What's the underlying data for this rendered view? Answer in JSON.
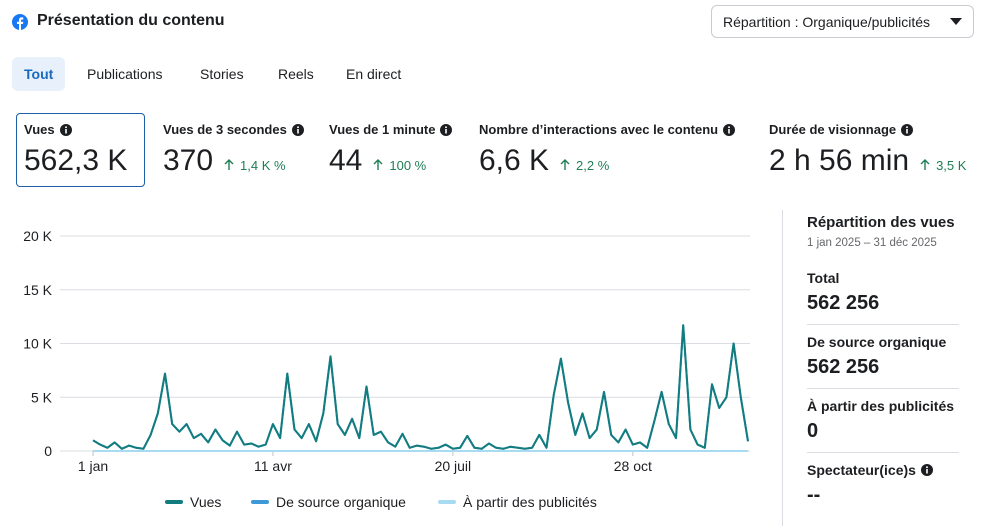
{
  "header": {
    "title": "Présentation du contenu",
    "dropdown": "Répartition : Organique/publicités"
  },
  "tabs": [
    "Tout",
    "Publications",
    "Stories",
    "Reels",
    "En direct"
  ],
  "metrics": [
    {
      "label": "Vues",
      "value": "562,3 K"
    },
    {
      "label": "Vues de 3 secondes",
      "value": "370",
      "change": "1,4 K %"
    },
    {
      "label": "Vues de 1 minute",
      "value": "44",
      "change": "100 %"
    },
    {
      "label": "Nombre d’interactions avec le contenu",
      "value": "6,6 K",
      "change": "2,2 %"
    },
    {
      "label": "Durée de visionnage",
      "value": "2 h 56 min",
      "change": "3,5 K"
    }
  ],
  "chart_data": {
    "type": "line",
    "x": [
      1,
      5,
      9,
      13,
      17,
      21,
      25,
      29,
      33,
      37,
      41,
      45,
      49,
      53,
      57,
      61,
      65,
      69,
      73,
      77,
      81,
      85,
      89,
      93,
      97,
      101,
      105,
      109,
      113,
      117,
      121,
      125,
      129,
      133,
      137,
      141,
      145,
      149,
      153,
      157,
      161,
      165,
      169,
      173,
      177,
      181,
      185,
      189,
      193,
      197,
      201,
      205,
      209,
      213,
      217,
      221,
      225,
      229,
      233,
      237,
      241,
      245,
      249,
      253,
      257,
      261,
      265,
      269,
      273,
      277,
      281,
      285,
      289,
      293,
      297,
      301,
      305,
      309,
      313,
      317,
      321,
      325,
      329,
      333,
      337,
      341,
      345,
      349,
      353,
      357,
      361,
      365
    ],
    "series": [
      {
        "name": "À partir des publicités",
        "color": "#a8daf2",
        "values": [
          0,
          0,
          0,
          0,
          0,
          0,
          0,
          0,
          0,
          0,
          0,
          0,
          0,
          0,
          0,
          0,
          0,
          0,
          0,
          0,
          0,
          0,
          0,
          0,
          0,
          0,
          0,
          0,
          0,
          0,
          0,
          0,
          0,
          0,
          0,
          0,
          0,
          0,
          0,
          0,
          0,
          0,
          0,
          0,
          0,
          0,
          0,
          0,
          0,
          0,
          0,
          0,
          0,
          0,
          0,
          0,
          0,
          0,
          0,
          0,
          0,
          0,
          0,
          0,
          0,
          0,
          0,
          0,
          0,
          0,
          0,
          0,
          0,
          0,
          0,
          0,
          0,
          0,
          0,
          0,
          0,
          0,
          0,
          0,
          0,
          0,
          0,
          0,
          0,
          0,
          0,
          0
        ]
      },
      {
        "name": "De source organique",
        "color": "#3d9ad6",
        "values": [
          1000,
          600,
          300,
          800,
          200,
          500,
          300,
          200,
          1500,
          3500,
          7200,
          2500,
          1800,
          2500,
          1200,
          1600,
          800,
          2000,
          1000,
          500,
          1800,
          600,
          700,
          400,
          600,
          2500,
          1200,
          7200,
          2000,
          1200,
          2500,
          900,
          3500,
          8800,
          2500,
          1500,
          3000,
          1200,
          6000,
          1500,
          1800,
          800,
          400,
          1600,
          300,
          500,
          400,
          200,
          300,
          600,
          200,
          300,
          1400,
          300,
          200,
          700,
          300,
          200,
          400,
          300,
          200,
          300,
          1500,
          300,
          5200,
          8600,
          4500,
          1500,
          3500,
          1200,
          2000,
          5500,
          1500,
          800,
          2000,
          600,
          800,
          300,
          2800,
          5500,
          2500,
          1200,
          11700,
          2000,
          600,
          300,
          6200,
          4000,
          5000,
          10000,
          5000,
          900
        ]
      },
      {
        "name": "Vues",
        "color": "#137c7e",
        "values": [
          1000,
          600,
          300,
          800,
          200,
          500,
          300,
          200,
          1500,
          3500,
          7200,
          2500,
          1800,
          2500,
          1200,
          1600,
          800,
          2000,
          1000,
          500,
          1800,
          600,
          700,
          400,
          600,
          2500,
          1200,
          7200,
          2000,
          1200,
          2500,
          900,
          3500,
          8800,
          2500,
          1500,
          3000,
          1200,
          6000,
          1500,
          1800,
          800,
          400,
          1600,
          300,
          500,
          400,
          200,
          300,
          600,
          200,
          300,
          1400,
          300,
          200,
          700,
          300,
          200,
          400,
          300,
          200,
          300,
          1500,
          300,
          5200,
          8600,
          4500,
          1500,
          3500,
          1200,
          2000,
          5500,
          1500,
          800,
          2000,
          600,
          800,
          300,
          2800,
          5500,
          2500,
          1200,
          11700,
          2000,
          600,
          300,
          6200,
          4000,
          5000,
          10000,
          5000,
          900
        ]
      }
    ],
    "xlim": [
      1,
      365
    ],
    "xticks": [
      {
        "value": 1,
        "label": "1 jan"
      },
      {
        "value": 101,
        "label": "11 avr"
      },
      {
        "value": 201,
        "label": "20 juil"
      },
      {
        "value": 301,
        "label": "28 oct"
      }
    ],
    "ylim": [
      0,
      20000
    ],
    "yticks": [
      {
        "value": 0,
        "label": "0"
      },
      {
        "value": 5000,
        "label": "5 K"
      },
      {
        "value": 10000,
        "label": "10 K"
      },
      {
        "value": 15000,
        "label": "15 K"
      },
      {
        "value": 20000,
        "label": "20 K"
      }
    ],
    "grid": true
  },
  "breakdown": {
    "title": "Répartition des vues",
    "dates": "1 jan 2025 – 31 déc 2025",
    "items": [
      {
        "label": "Total",
        "value": "562 256"
      },
      {
        "label": "De source organique",
        "value": "562 256"
      },
      {
        "label": "À partir des publicités",
        "value": "0"
      },
      {
        "label": "Spectateur(ice)s",
        "value": "--"
      }
    ]
  }
}
